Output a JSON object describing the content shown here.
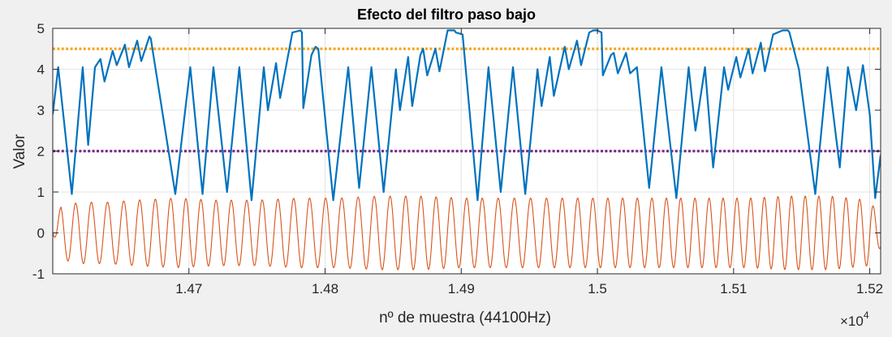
{
  "chart_data": {
    "type": "line",
    "title": "Efecto del filtro paso bajo",
    "xlabel": "nº de muestra (44100Hz)",
    "ylabel": "Valor",
    "x_exponent_label": "×10",
    "x_exponent": "4",
    "xlim": [
      14600,
      15208
    ],
    "ylim": [
      -1,
      5
    ],
    "x_ticks": [
      14700,
      14800,
      14900,
      15000,
      15100,
      15200
    ],
    "x_tick_labels": [
      "1.47",
      "1.48",
      "1.49",
      "1.5",
      "1.51",
      "1.52"
    ],
    "y_ticks": [
      -1,
      0,
      1,
      2,
      3,
      4,
      5
    ],
    "y_tick_labels": [
      "-1",
      "0",
      "1",
      "2",
      "3",
      "4",
      "5"
    ],
    "grid": true,
    "thresholds": [
      {
        "value": 4.5,
        "color": "#f5a623",
        "style": "dotted"
      },
      {
        "value": 2.0,
        "color": "#7e2f8e",
        "style": "dotted"
      }
    ],
    "series": [
      {
        "color": "#0072bd",
        "style": "solid",
        "kind": "envelope",
        "points": [
          [
            14600,
            2.9
          ],
          [
            14604,
            4.05
          ],
          [
            14614,
            0.95
          ],
          [
            14622,
            4.05
          ],
          [
            14626,
            2.15
          ],
          [
            14631,
            4.05
          ],
          [
            14635,
            4.25
          ],
          [
            14638,
            3.7
          ],
          [
            14644,
            4.45
          ],
          [
            14647,
            4.1
          ],
          [
            14653,
            4.6
          ],
          [
            14656,
            4.05
          ],
          [
            14662,
            4.7
          ],
          [
            14665,
            4.2
          ],
          [
            14671,
            4.8
          ],
          [
            14672,
            4.75
          ],
          [
            14690,
            0.95
          ],
          [
            14701,
            4.05
          ],
          [
            14710,
            0.95
          ],
          [
            14718,
            4.05
          ],
          [
            14728,
            1.0
          ],
          [
            14737,
            4.05
          ],
          [
            14746,
            0.8
          ],
          [
            14755,
            4.05
          ],
          [
            14758,
            3.0
          ],
          [
            14764,
            4.15
          ],
          [
            14767,
            3.3
          ],
          [
            14776,
            4.9
          ],
          [
            14782,
            4.95
          ],
          [
            14783,
            4.9
          ],
          [
            14784,
            3.05
          ],
          [
            14790,
            4.35
          ],
          [
            14793,
            4.55
          ],
          [
            14795,
            4.5
          ],
          [
            14806,
            0.8
          ],
          [
            14817,
            4.05
          ],
          [
            14825,
            1.1
          ],
          [
            14834,
            4.05
          ],
          [
            14843,
            1.0
          ],
          [
            14852,
            4.0
          ],
          [
            14855,
            3.0
          ],
          [
            14861,
            4.3
          ],
          [
            14864,
            3.1
          ],
          [
            14870,
            4.35
          ],
          [
            14872,
            4.5
          ],
          [
            14875,
            3.85
          ],
          [
            14881,
            4.5
          ],
          [
            14884,
            3.95
          ],
          [
            14890,
            4.95
          ],
          [
            14895,
            4.95
          ],
          [
            14896,
            4.9
          ],
          [
            14901,
            4.85
          ],
          [
            14912,
            0.8
          ],
          [
            14920,
            4.05
          ],
          [
            14929,
            1.0
          ],
          [
            14938,
            4.05
          ],
          [
            14947,
            0.95
          ],
          [
            14956,
            4.0
          ],
          [
            14959,
            3.1
          ],
          [
            14965,
            4.3
          ],
          [
            14968,
            3.35
          ],
          [
            14976,
            4.55
          ],
          [
            14979,
            4.0
          ],
          [
            14985,
            4.7
          ],
          [
            14988,
            4.1
          ],
          [
            14994,
            4.9
          ],
          [
            14997,
            4.95
          ],
          [
            15000,
            4.95
          ],
          [
            15003,
            4.9
          ],
          [
            15004,
            3.85
          ],
          [
            15010,
            4.35
          ],
          [
            15012,
            4.4
          ],
          [
            15015,
            3.9
          ],
          [
            15021,
            4.4
          ],
          [
            15024,
            3.9
          ],
          [
            15029,
            4.05
          ],
          [
            15038,
            1.1
          ],
          [
            15047,
            4.05
          ],
          [
            15058,
            0.85
          ],
          [
            15067,
            4.05
          ],
          [
            15072,
            2.5
          ],
          [
            15079,
            4.05
          ],
          [
            15085,
            1.6
          ],
          [
            15093,
            4.05
          ],
          [
            15096,
            3.5
          ],
          [
            15102,
            4.3
          ],
          [
            15105,
            3.8
          ],
          [
            15111,
            4.5
          ],
          [
            15114,
            3.9
          ],
          [
            15120,
            4.65
          ],
          [
            15123,
            3.95
          ],
          [
            15129,
            4.85
          ],
          [
            15136,
            4.95
          ],
          [
            15140,
            4.95
          ],
          [
            15141,
            4.9
          ],
          [
            15148,
            4.0
          ],
          [
            15160,
            0.95
          ],
          [
            15169,
            4.05
          ],
          [
            15178,
            1.6
          ],
          [
            15184,
            4.05
          ],
          [
            15190,
            3.0
          ],
          [
            15195,
            4.1
          ],
          [
            15200,
            2.9
          ],
          [
            15204,
            0.85
          ],
          [
            15208,
            1.9
          ]
        ]
      },
      {
        "color": "#d95319",
        "style": "solid",
        "kind": "oscillation",
        "amplitude_points": [
          [
            14600,
            0.0
          ],
          [
            14606,
            0.65
          ],
          [
            14620,
            0.75
          ],
          [
            14640,
            0.75
          ],
          [
            14660,
            0.8
          ],
          [
            14690,
            0.85
          ],
          [
            14720,
            0.8
          ],
          [
            14750,
            0.8
          ],
          [
            14780,
            0.85
          ],
          [
            14810,
            0.85
          ],
          [
            14840,
            0.9
          ],
          [
            14870,
            0.9
          ],
          [
            14900,
            0.85
          ],
          [
            14930,
            0.85
          ],
          [
            14960,
            0.85
          ],
          [
            14990,
            0.85
          ],
          [
            15020,
            0.85
          ],
          [
            15050,
            0.85
          ],
          [
            15080,
            0.85
          ],
          [
            15110,
            0.85
          ],
          [
            15140,
            0.9
          ],
          [
            15170,
            0.9
          ],
          [
            15200,
            0.8
          ],
          [
            15208,
            0.35
          ]
        ],
        "period_points": [
          [
            14600,
            11
          ],
          [
            14640,
            12
          ],
          [
            14700,
            11
          ],
          [
            14760,
            11.5
          ],
          [
            14820,
            12
          ],
          [
            14880,
            11
          ],
          [
            14940,
            12
          ],
          [
            15000,
            11
          ],
          [
            15060,
            10.5
          ],
          [
            15120,
            10
          ],
          [
            15208,
            10
          ]
        ],
        "phase_start": 4.71
      }
    ]
  }
}
